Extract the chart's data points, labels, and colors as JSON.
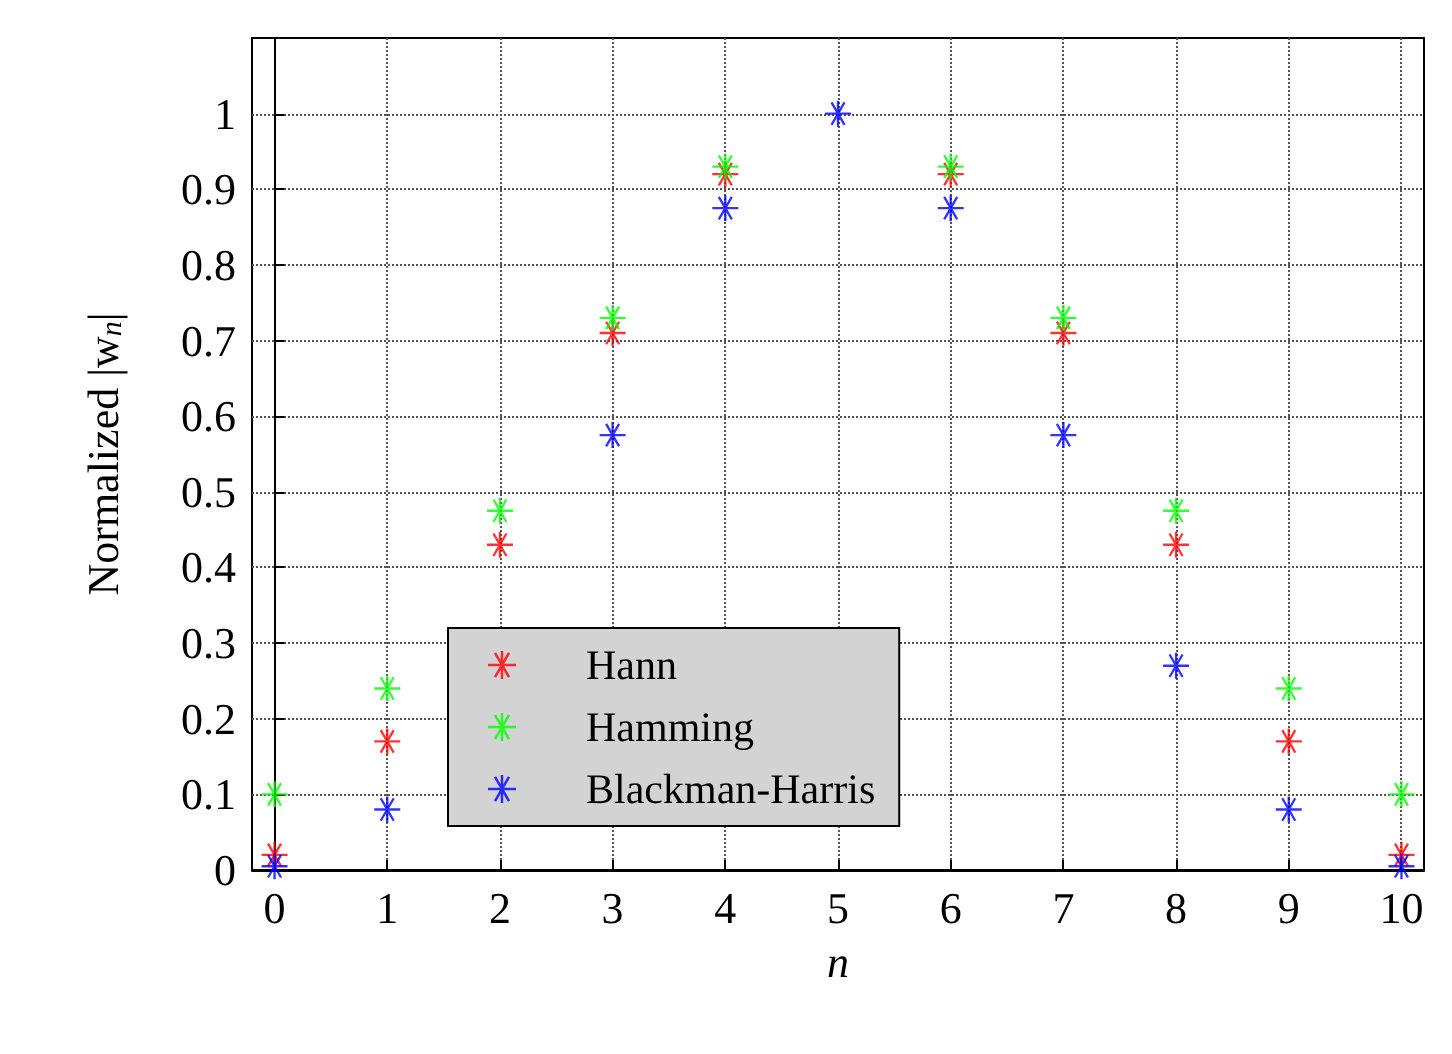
{
  "chart_data": {
    "type": "scatter",
    "xlabel": "n",
    "ylabel": "Normalized |w$_{n}$|",
    "x": [
      0,
      1,
      2,
      3,
      4,
      5,
      6,
      7,
      8,
      9,
      10
    ],
    "series": [
      {
        "name": "Hann",
        "color": "#ff0000",
        "values": [
          0.02,
          0.17,
          0.43,
          0.71,
          0.92,
          null,
          0.92,
          0.71,
          0.43,
          0.17,
          0.02
        ]
      },
      {
        "name": "Hamming",
        "color": "#00ff00",
        "values": [
          0.1,
          0.24,
          0.475,
          0.73,
          0.93,
          null,
          0.93,
          0.73,
          0.475,
          0.24,
          0.1
        ]
      },
      {
        "name": "Blackman-Harris",
        "color": "#0000ff",
        "values": [
          0.005,
          0.08,
          null,
          0.575,
          0.875,
          1,
          0.875,
          0.575,
          0.27,
          0.08,
          0.005
        ]
      }
    ],
    "xlim": [
      -0.2,
      10.2
    ],
    "xticks": [
      0,
      1,
      2,
      3,
      4,
      5,
      6,
      7,
      8,
      9,
      10
    ],
    "ylim": [
      0,
      1.1
    ],
    "yticks": [
      0,
      0.1,
      0.2,
      0.3,
      0.4,
      0.5,
      0.6,
      0.7,
      0.8,
      0.9,
      1
    ],
    "grid": true,
    "legend": "bottom",
    "marker": "star"
  }
}
